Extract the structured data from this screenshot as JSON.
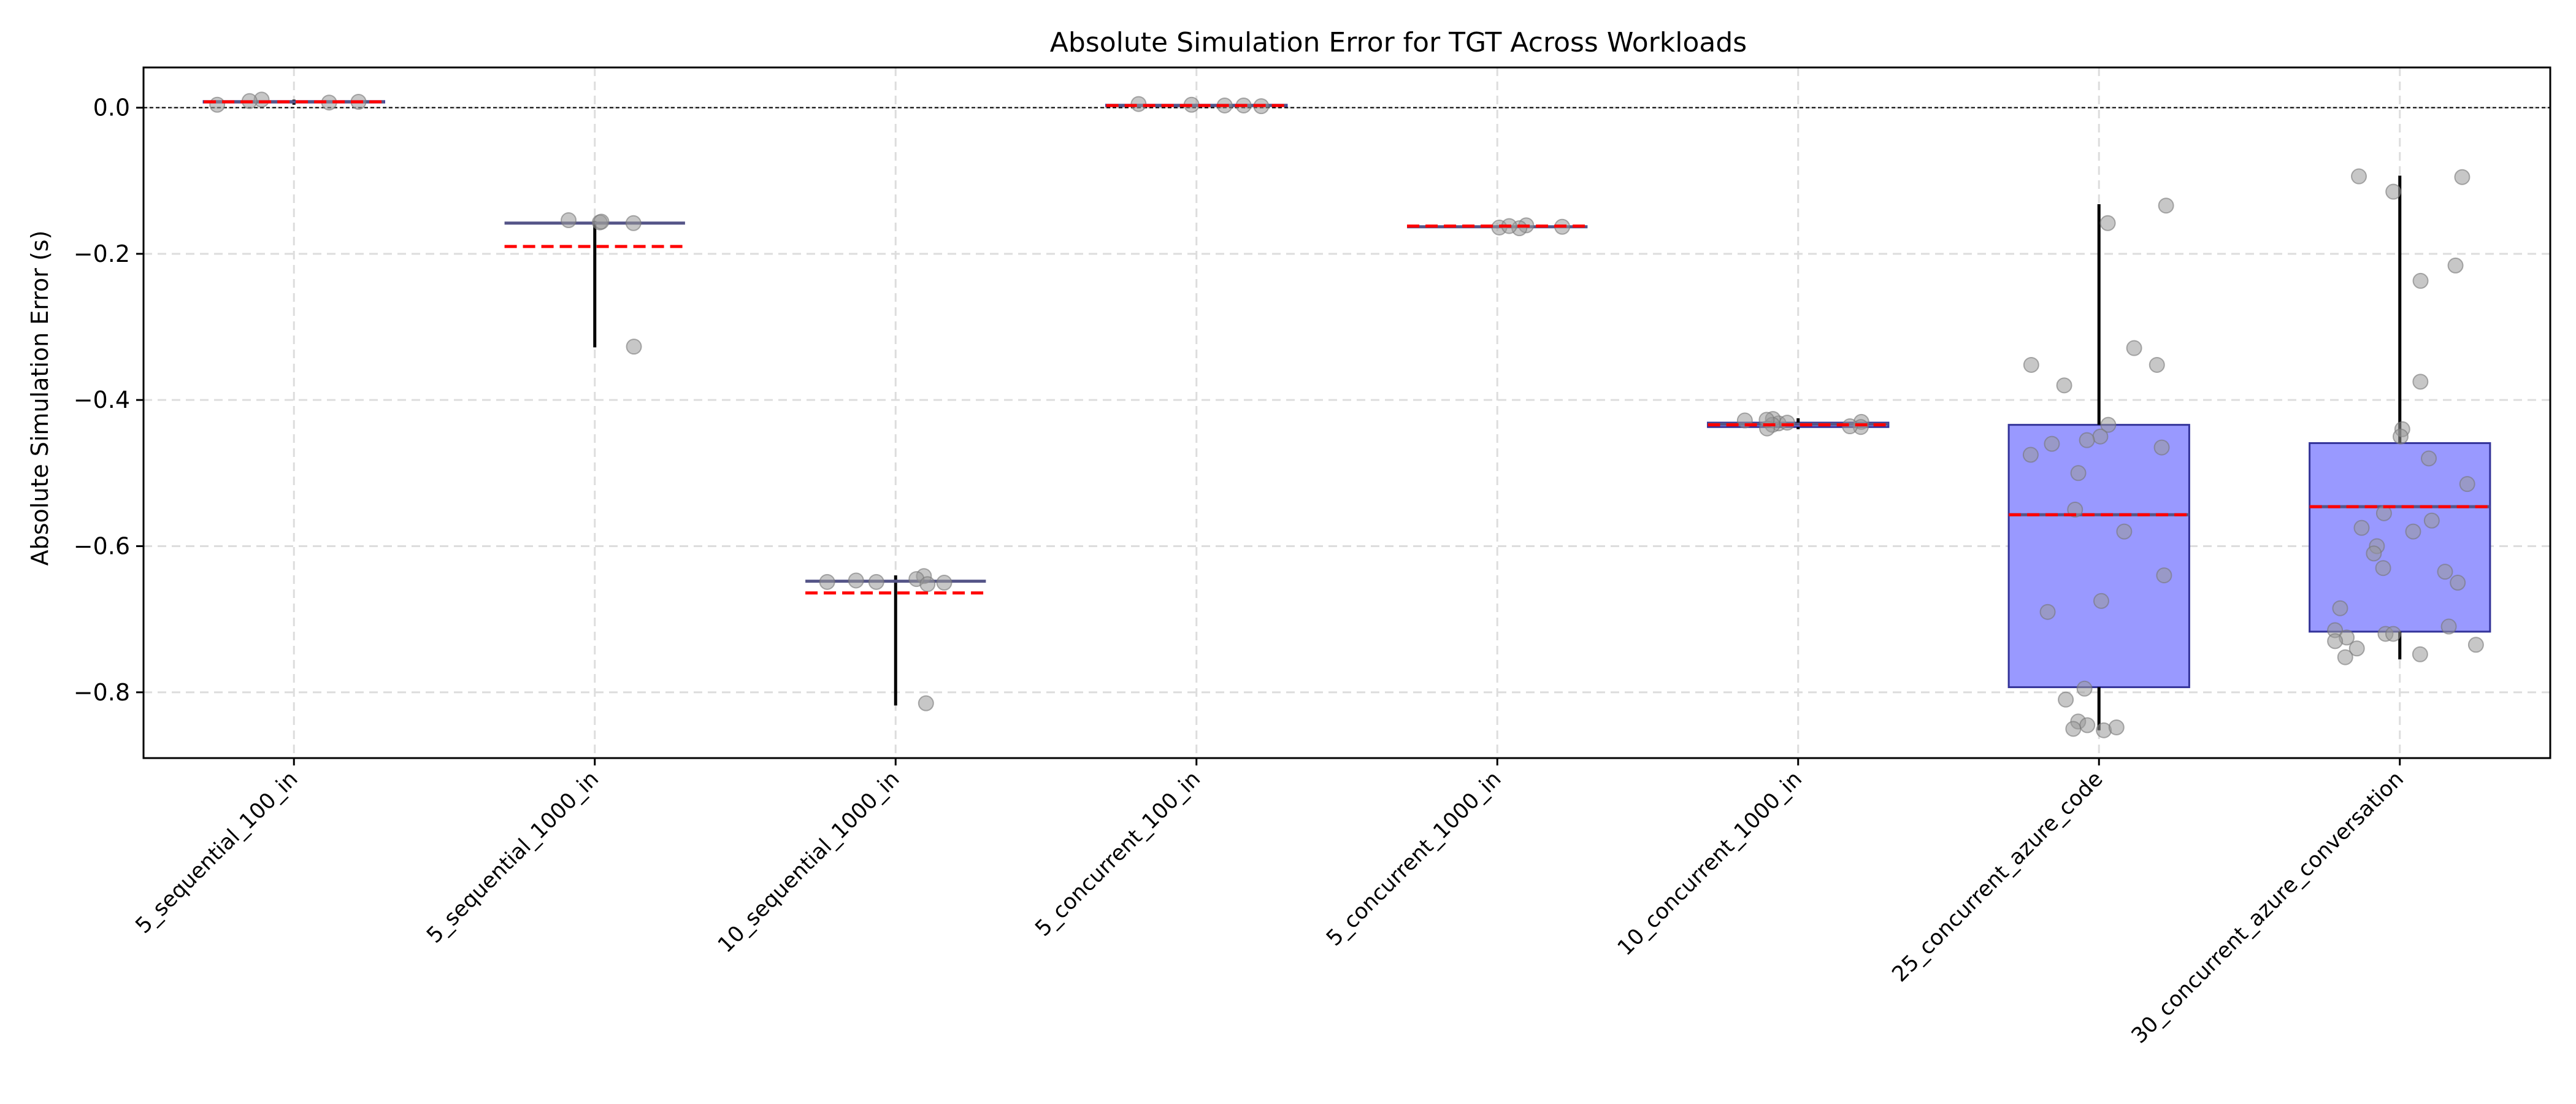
{
  "chart_data": {
    "type": "box",
    "title": "Absolute Simulation Error for TGT Across Workloads",
    "xlabel": "",
    "ylabel": "Absolute Simulation Error (s)",
    "ylim": [
      -0.89,
      0.055
    ],
    "yticks": [
      0.0,
      -0.2,
      -0.4,
      -0.6,
      -0.8
    ],
    "ytick_labels": [
      "0.0",
      "−0.2",
      "−0.4",
      "−0.6",
      "−0.8"
    ],
    "grid": true,
    "reference_line": 0.0,
    "colors": {
      "box_fill": "#9999ff",
      "box_edge": "#333399",
      "median": "#555588",
      "mean": "#ff0000",
      "whisker": "#000000",
      "points": "#999999",
      "grid": "#dddddd"
    },
    "categories": [
      "5_sequential_100_in",
      "5_sequential_1000_in",
      "10_sequential_1000_in",
      "5_concurrent_100_in",
      "5_concurrent_1000_in",
      "10_concurrent_1000_in",
      "25_concurrent_azure_code",
      "30_concurrent_azure_conversation"
    ],
    "boxes": [
      {
        "q1": 0.007,
        "median": 0.008,
        "q3": 0.009,
        "whislo": 0.004,
        "whishi": 0.011,
        "mean": 0.008,
        "points": [
          0.004,
          0.008,
          0.011,
          0.009,
          0.007
        ]
      },
      {
        "q1": -0.158,
        "median": -0.158,
        "q3": -0.158,
        "whislo": -0.328,
        "whishi": -0.155,
        "mean": -0.19,
        "points": [
          -0.157,
          -0.154,
          -0.158,
          -0.327,
          -0.156
        ]
      },
      {
        "q1": -0.648,
        "median": -0.648,
        "q3": -0.648,
        "whislo": -0.818,
        "whishi": -0.64,
        "mean": -0.664,
        "points": [
          -0.641,
          -0.645,
          -0.65,
          -0.647,
          -0.649,
          -0.652,
          -0.815,
          -0.649
        ]
      },
      {
        "q1": 0.002,
        "median": 0.003,
        "q3": 0.004,
        "whislo": 0.001,
        "whishi": 0.005,
        "mean": 0.003,
        "points": [
          0.003,
          0.004,
          0.002,
          0.003,
          0.005
        ]
      },
      {
        "q1": -0.163,
        "median": -0.163,
        "q3": -0.163,
        "whislo": -0.165,
        "whishi": -0.161,
        "mean": -0.162,
        "points": [
          -0.164,
          -0.163,
          -0.161,
          -0.165,
          -0.162
        ]
      },
      {
        "q1": -0.437,
        "median": -0.433,
        "q3": -0.431,
        "whislo": -0.44,
        "whishi": -0.425,
        "mean": -0.434,
        "points": [
          -0.43,
          -0.437,
          -0.432,
          -0.426,
          -0.436,
          -0.434,
          -0.428,
          -0.439,
          -0.431,
          -0.427
        ]
      },
      {
        "q1": -0.793,
        "median": -0.557,
        "q3": -0.434,
        "whislo": -0.852,
        "whishi": -0.132,
        "mean": -0.557,
        "points": [
          -0.134,
          -0.158,
          -0.329,
          -0.352,
          -0.352,
          -0.38,
          -0.434,
          -0.45,
          -0.455,
          -0.46,
          -0.465,
          -0.475,
          -0.5,
          -0.55,
          -0.58,
          -0.64,
          -0.675,
          -0.69,
          -0.795,
          -0.81,
          -0.84,
          -0.845,
          -0.85,
          -0.852,
          -0.848
        ]
      },
      {
        "q1": -0.717,
        "median": -0.546,
        "q3": -0.459,
        "whislo": -0.755,
        "whishi": -0.093,
        "mean": -0.546,
        "points": [
          -0.094,
          -0.095,
          -0.115,
          -0.216,
          -0.237,
          -0.375,
          -0.44,
          -0.45,
          -0.48,
          -0.515,
          -0.555,
          -0.565,
          -0.575,
          -0.58,
          -0.6,
          -0.61,
          -0.63,
          -0.635,
          -0.65,
          -0.685,
          -0.71,
          -0.715,
          -0.72,
          -0.725,
          -0.73,
          -0.735,
          -0.74,
          -0.748,
          -0.752,
          -0.72
        ]
      }
    ]
  }
}
